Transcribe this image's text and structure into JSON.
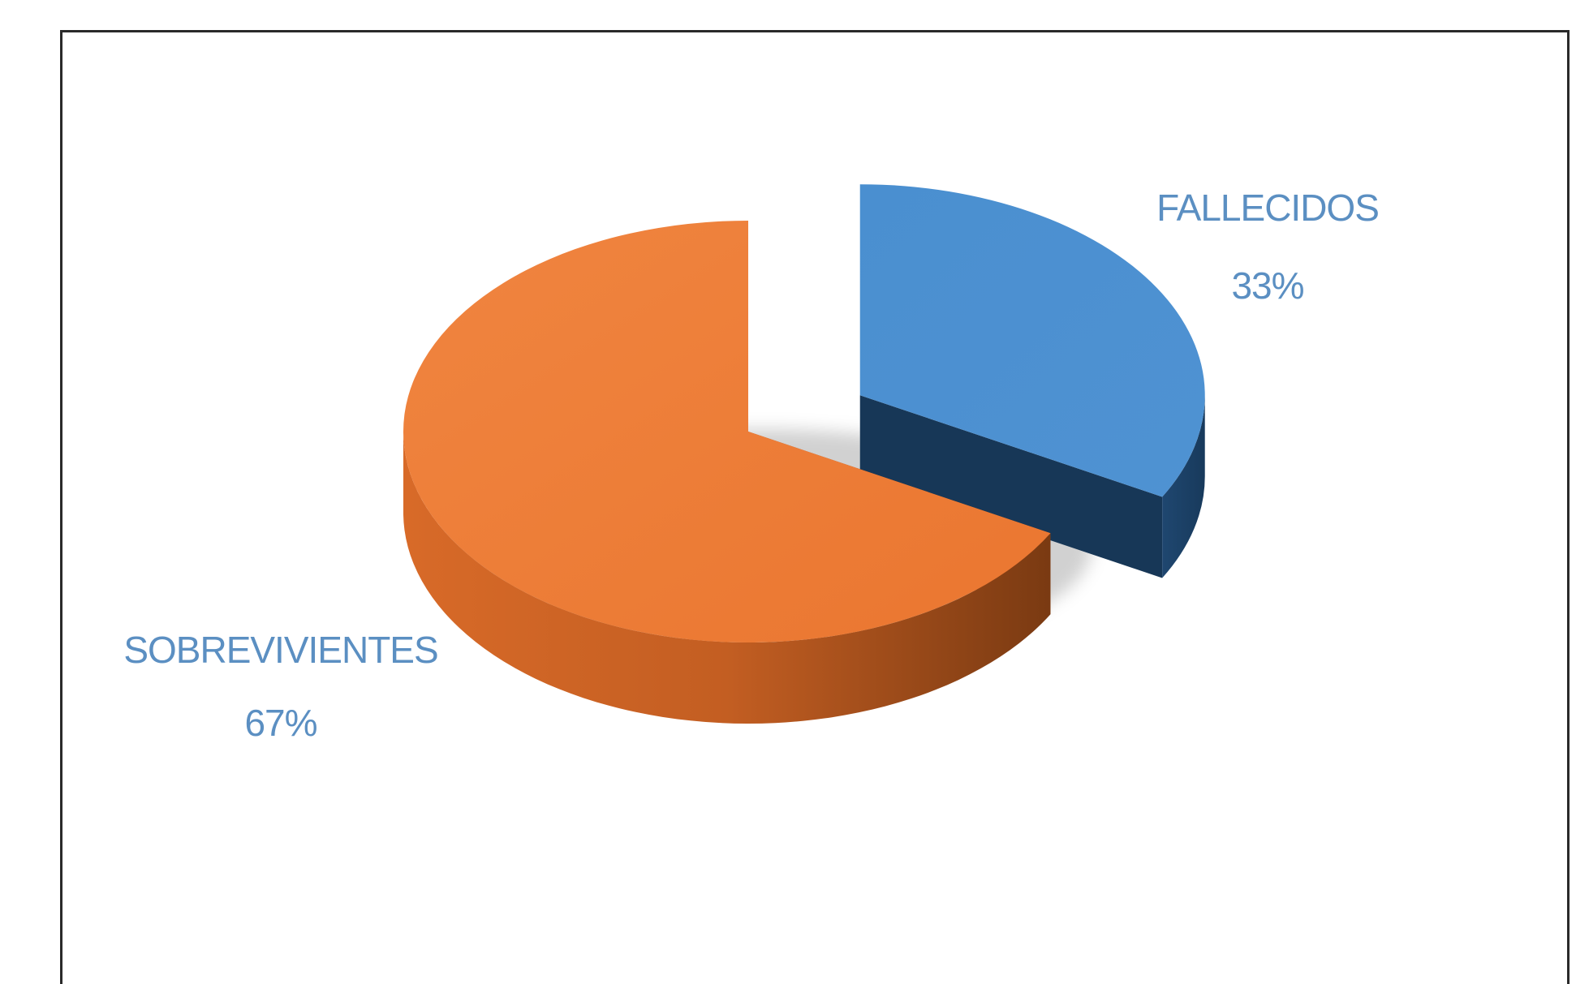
{
  "chart_data": {
    "type": "pie",
    "style": "3d-exploded",
    "slices": [
      {
        "category": "FALLECIDOS",
        "percent_label": "33%",
        "value": 33,
        "color": "#4a8fd0",
        "side_color": "#1d4266",
        "label_color": "#5b8fc2",
        "exploded": true
      },
      {
        "category": "SOBREVIVIENTES",
        "percent_label": "67%",
        "value": 67,
        "color": "#ef7b34",
        "side_color": "#b95a20",
        "label_color": "#5b8fc2",
        "exploded": false
      }
    ],
    "legend": "none",
    "data_labels": "category-and-percent"
  }
}
